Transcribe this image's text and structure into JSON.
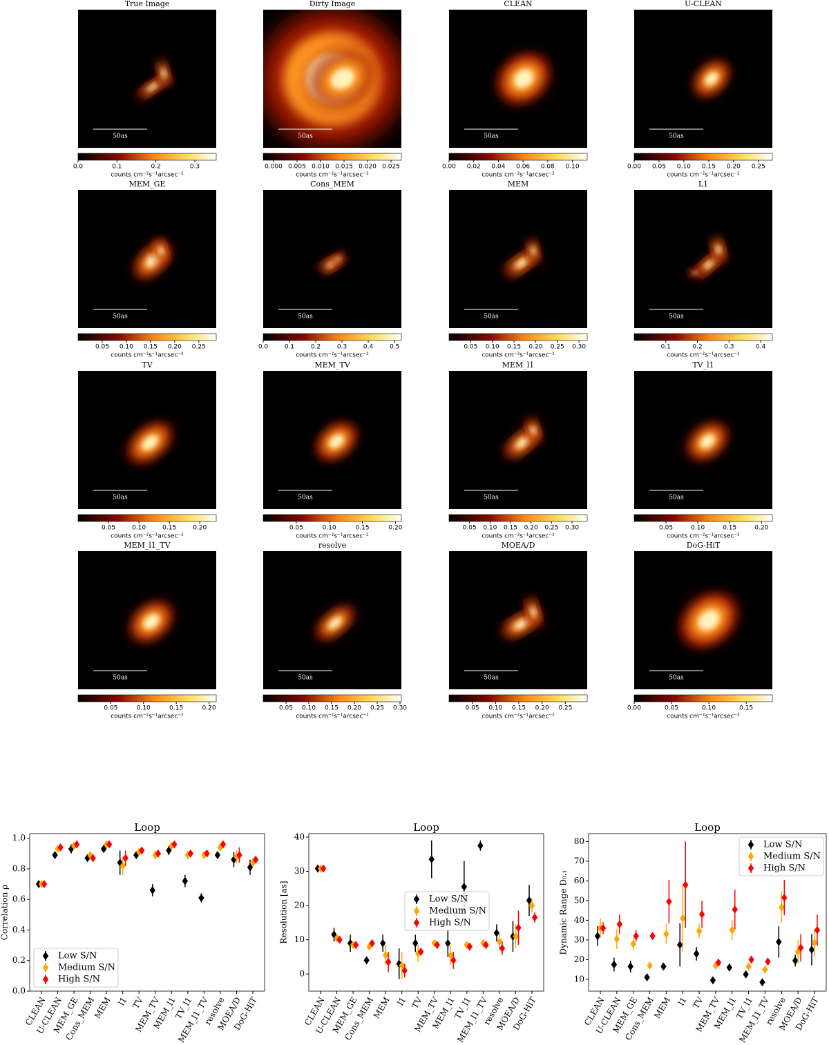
{
  "chart_data": [
    {
      "type": "image",
      "title": "True Image",
      "scale_label": "50as",
      "colorbar_label": "counts cm⁻²s⁻¹arcsec⁻²",
      "clim": [
        0,
        0.355
      ],
      "cticks": [
        {
          "value": 0,
          "label": "0.0"
        },
        0.1,
        0.2,
        0.3
      ]
    },
    {
      "type": "image",
      "title": "Dirty Image",
      "scale_label": "50as",
      "colorbar_label": "counts cm⁻²s⁻¹arcsec⁻²",
      "clim": [
        -0.0022,
        0.0272
      ],
      "cticks": [
        {
          "value": 0,
          "label": "0.000"
        },
        0.005,
        {
          "value": 0.01,
          "label": "0.010"
        },
        0.015,
        {
          "value": 0.02,
          "label": "0.020"
        },
        0.025
      ]
    },
    {
      "type": "image",
      "title": "CLEAN",
      "scale_label": "50as",
      "colorbar_label": "counts cm⁻²s⁻¹arcsec⁻²",
      "clim": [
        0,
        0.112
      ],
      "cticks": [
        {
          "value": 0,
          "label": "0.00"
        },
        0.02,
        0.04,
        0.06,
        0.08,
        {
          "value": 0.1,
          "label": "0.10"
        }
      ]
    },
    {
      "type": "image",
      "title": "U-CLEAN",
      "scale_label": "50as",
      "colorbar_label": "counts cm⁻²s⁻¹arcsec⁻²",
      "clim": [
        0,
        0.278
      ],
      "cticks": [
        {
          "value": 0,
          "label": "0.00"
        },
        0.05,
        {
          "value": 0.1,
          "label": "0.10"
        },
        0.15,
        {
          "value": 0.2,
          "label": "0.20"
        },
        0.25
      ]
    },
    {
      "type": "image",
      "title": "MEM_GE",
      "scale_label": "50as",
      "colorbar_label": "counts cm⁻²s⁻¹arcsec⁻²",
      "clim": [
        0,
        0.286
      ],
      "cticks": [
        0.05,
        {
          "value": 0.1,
          "label": "0.10"
        },
        0.15,
        {
          "value": 0.2,
          "label": "0.20"
        },
        0.25
      ]
    },
    {
      "type": "image",
      "title": "Cons_MEM",
      "scale_label": "50as",
      "colorbar_label": "counts cm⁻²s⁻¹arcsec⁻²",
      "clim": [
        0,
        0.526
      ],
      "cticks": [
        {
          "value": 0,
          "label": "0.0"
        },
        0.1,
        0.2,
        0.3,
        0.4,
        0.5
      ]
    },
    {
      "type": "image",
      "title": "MEM",
      "scale_label": "50as",
      "colorbar_label": "counts cm⁻²s⁻¹arcsec⁻²",
      "clim": [
        0,
        0.319
      ],
      "cticks": [
        0.05,
        {
          "value": 0.1,
          "label": "0.10"
        },
        0.15,
        {
          "value": 0.2,
          "label": "0.20"
        },
        0.25,
        {
          "value": 0.3,
          "label": "0.30"
        }
      ]
    },
    {
      "type": "image",
      "title": "L1",
      "scale_label": "50as",
      "colorbar_label": "counts cm⁻²s⁻¹arcsec⁻²",
      "clim": [
        0,
        0.437
      ],
      "cticks": [
        0.1,
        0.2,
        0.3,
        0.4
      ]
    },
    {
      "type": "image",
      "title": "TV",
      "scale_label": "50as",
      "colorbar_label": "counts cm⁻²s⁻¹arcsec⁻²",
      "clim": [
        0,
        0.227
      ],
      "cticks": [
        0.05,
        {
          "value": 0.1,
          "label": "0.10"
        },
        0.15,
        {
          "value": 0.2,
          "label": "0.20"
        }
      ]
    },
    {
      "type": "image",
      "title": "MEM_TV",
      "scale_label": "50as",
      "colorbar_label": "counts cm⁻²s⁻¹arcsec⁻²",
      "clim": [
        0,
        0.209
      ],
      "cticks": [
        0.05,
        {
          "value": 0.1,
          "label": "0.10"
        },
        0.15,
        {
          "value": 0.2,
          "label": "0.20"
        }
      ]
    },
    {
      "type": "image",
      "title": "MEM_l1",
      "scale_label": "50as",
      "colorbar_label": "counts cm⁻²s⁻¹arcsec⁻²",
      "clim": [
        0,
        0.337
      ],
      "cticks": [
        0.05,
        {
          "value": 0.1,
          "label": "0.10"
        },
        0.15,
        {
          "value": 0.2,
          "label": "0.20"
        },
        0.25,
        {
          "value": 0.3,
          "label": "0.30"
        }
      ]
    },
    {
      "type": "image",
      "title": "TV_l1",
      "scale_label": "50as",
      "colorbar_label": "counts cm⁻²s⁻¹arcsec⁻²",
      "clim": [
        0,
        0.217
      ],
      "cticks": [
        0.05,
        {
          "value": 0.1,
          "label": "0.10"
        },
        0.15,
        {
          "value": 0.2,
          "label": "0.20"
        }
      ]
    },
    {
      "type": "image",
      "title": "MEM_l1_TV",
      "scale_label": "50as",
      "colorbar_label": "counts cm⁻²s⁻¹arcsec⁻²",
      "clim": [
        0,
        0.211
      ],
      "cticks": [
        0.05,
        {
          "value": 0.1,
          "label": "0.10"
        },
        0.15,
        {
          "value": 0.2,
          "label": "0.20"
        }
      ]
    },
    {
      "type": "image",
      "title": "resolve",
      "scale_label": "50as",
      "colorbar_label": "counts cm⁻²s⁻¹arcsec⁻²",
      "clim": [
        0,
        0.303
      ],
      "cticks": [
        0.05,
        {
          "value": 0.1,
          "label": "0.10"
        },
        0.15,
        {
          "value": 0.2,
          "label": "0.20"
        },
        0.25,
        {
          "value": 0.3,
          "label": "0.30"
        }
      ]
    },
    {
      "type": "image",
      "title": "MOEA/D",
      "scale_label": "50as",
      "colorbar_label": "counts cm⁻²s⁻¹arcsec⁻²",
      "clim": [
        0,
        0.297
      ],
      "cticks": [
        0.05,
        {
          "value": 0.1,
          "label": "0.10"
        },
        0.15,
        {
          "value": 0.2,
          "label": "0.20"
        },
        0.25
      ]
    },
    {
      "type": "image",
      "title": "DoG-HiT",
      "scale_label": "50as",
      "colorbar_label": "counts cm⁻²s⁻¹arcsec⁻²",
      "clim": [
        0,
        0.185
      ],
      "cticks": [
        {
          "value": 0,
          "label": "0.00"
        },
        0.05,
        {
          "value": 0.1,
          "label": "0.10"
        },
        0.15
      ]
    },
    {
      "type": "errorbar",
      "title": "Loop",
      "ylabel": "Correlation ρ",
      "legend": "lower left",
      "categories": [
        "CLEAN",
        "U-CLEAN",
        "MEM_GE",
        "Cons_MEM",
        "MEM",
        "l1",
        "TV",
        "MEM_TV",
        "MEM_l1",
        "TV_l1",
        "MEM_l1_TV",
        "resolve",
        "MOEA/D",
        "DoG-HiT"
      ],
      "ylim": [
        0,
        1.03
      ],
      "yticks": [
        {
          "value": 0,
          "label": "0.0"
        },
        0.2,
        0.4,
        0.6,
        0.8,
        {
          "value": 1,
          "label": "1.0"
        }
      ],
      "series": [
        {
          "name": "Low S/N",
          "color": "#000000",
          "values": [
            0.7,
            0.89,
            0.93,
            0.87,
            0.93,
            0.84,
            0.89,
            0.66,
            0.92,
            0.72,
            0.61,
            0.89,
            0.86,
            0.81
          ],
          "errors": [
            0.01,
            0.02,
            0.03,
            0.01,
            0.02,
            0.08,
            0.02,
            0.04,
            0.03,
            0.04,
            0.03,
            0.02,
            0.05,
            0.05
          ]
        },
        {
          "name": "Medium S/N",
          "color": "#ffa500",
          "values": [
            0.7,
            0.93,
            0.95,
            0.89,
            0.96,
            0.82,
            0.91,
            0.89,
            0.95,
            0.89,
            0.89,
            0.94,
            0.88,
            0.84
          ],
          "errors": [
            0.01,
            0.01,
            0.01,
            0.01,
            0.01,
            0.06,
            0.01,
            0.01,
            0.01,
            0.01,
            0.01,
            0.01,
            0.04,
            0.03
          ]
        },
        {
          "name": "High S/N",
          "color": "#ff0000",
          "values": [
            0.7,
            0.94,
            0.96,
            0.87,
            0.96,
            0.87,
            0.92,
            0.9,
            0.96,
            0.9,
            0.9,
            0.96,
            0.89,
            0.86
          ],
          "errors": [
            0.01,
            0.01,
            0.01,
            0.01,
            0.01,
            0.05,
            0.01,
            0.01,
            0.01,
            0.01,
            0.01,
            0.01,
            0.05,
            0.02
          ]
        }
      ]
    },
    {
      "type": "errorbar",
      "title": "Loop",
      "ylabel": "Resolution [as]",
      "legend": "center",
      "categories": [
        "CLEAN",
        "U-CLEAN",
        "MEM_GE",
        "Cons_MEM",
        "MEM",
        "l1",
        "TV",
        "MEM_TV",
        "MEM_l1",
        "TV_l1",
        "MEM_l1_TV",
        "resolve",
        "MOEA/D",
        "DoG-HiT"
      ],
      "ylim": [
        -5,
        41
      ],
      "yticks": [
        0,
        10,
        20,
        30,
        40
      ],
      "series": [
        {
          "name": "Low S/N",
          "color": "#000000",
          "values": [
            30.8,
            11.5,
            9,
            4,
            9,
            3,
            9,
            33.5,
            9,
            25.5,
            37.5,
            12,
            11,
            21.5
          ],
          "errors": [
            0.5,
            2,
            2.5,
            0.5,
            2.5,
            4.5,
            2.5,
            5.5,
            4,
            7.5,
            1.5,
            2.5,
            4.5,
            4.5
          ]
        },
        {
          "name": "Medium S/N",
          "color": "#ffa500",
          "values": [
            30.8,
            10.5,
            8.5,
            8,
            5.5,
            2.5,
            6,
            9,
            5.5,
            8.5,
            9,
            9.5,
            11,
            20
          ],
          "errors": [
            0.5,
            1,
            1,
            1,
            3,
            4,
            2.5,
            1,
            3,
            0.5,
            0.5,
            2.5,
            3.5,
            2
          ]
        },
        {
          "name": "High S/N",
          "color": "#ff0000",
          "values": [
            30.8,
            10,
            8.5,
            9,
            3.5,
            1,
            6.5,
            8.5,
            4,
            8,
            8.5,
            7.5,
            13.5,
            16.5
          ],
          "errors": [
            0.5,
            0.5,
            0.5,
            0.5,
            3,
            2,
            1,
            0.5,
            2.5,
            0.5,
            0.5,
            2,
            5,
            1.5
          ]
        }
      ]
    },
    {
      "type": "errorbar",
      "title": "Loop",
      "ylabel": "Dynamic Range D₀.₁",
      "legend": "upper right",
      "categories": [
        "CLEAN",
        "U-CLEAN",
        "MEM_GE",
        "Cons_MEM",
        "MEM",
        "l1",
        "TV",
        "MEM_TV",
        "MEM_l1",
        "TV_l1",
        "MEM_l1_TV",
        "resolve",
        "MOEA/D",
        "DoG-HiT"
      ],
      "ylim": [
        4,
        84
      ],
      "yticks": [
        10,
        20,
        30,
        40,
        50,
        60,
        70,
        80
      ],
      "series": [
        {
          "name": "Low S/N",
          "color": "#000000",
          "values": [
            32,
            17.5,
            16.5,
            11,
            16.5,
            27.5,
            23,
            9.5,
            16,
            12.5,
            8.5,
            29,
            19.5,
            25
          ],
          "errors": [
            5,
            3.5,
            3,
            1,
            1,
            11,
            3.5,
            1,
            1,
            1,
            1,
            8,
            3,
            8
          ]
        },
        {
          "name": "Medium S/N",
          "color": "#ffa500",
          "values": [
            36,
            30.5,
            28,
            17,
            33,
            41,
            34.5,
            17,
            35,
            16.5,
            15,
            46.5,
            24,
            28.5
          ],
          "errors": [
            5,
            5,
            3,
            1,
            5,
            17,
            3.5,
            1,
            5,
            1,
            2,
            8,
            6,
            7
          ]
        },
        {
          "name": "High S/N",
          "color": "#ff0000",
          "values": [
            36,
            38,
            32,
            32,
            49.5,
            58,
            43,
            18.5,
            45.5,
            20,
            19,
            51.5,
            26,
            35
          ],
          "errors": [
            3,
            5,
            3,
            1,
            11,
            22,
            7,
            1,
            10,
            1,
            1,
            9,
            7,
            8
          ]
        }
      ]
    }
  ]
}
